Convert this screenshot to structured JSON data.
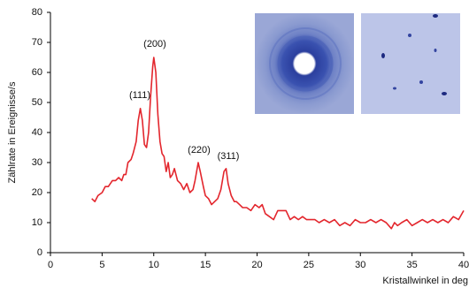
{
  "chart_data": {
    "type": "line",
    "y_label": "Zählrate in Ereignisse/s",
    "x_label": "Kristallwinkel in deg",
    "annotations": [
      "(111)",
      "(200)",
      "(220)",
      "(311)"
    ],
    "color": "#e3262d",
    "x": [
      4.0,
      4.3,
      4.6,
      5.0,
      5.3,
      5.6,
      6.0,
      6.3,
      6.6,
      6.9,
      7.1,
      7.3,
      7.5,
      7.8,
      8.0,
      8.3,
      8.5,
      8.7,
      8.9,
      9.1,
      9.3,
      9.5,
      9.7,
      9.9,
      10.0,
      10.2,
      10.4,
      10.6,
      10.8,
      11.0,
      11.2,
      11.4,
      11.6,
      11.8,
      12.0,
      12.3,
      12.6,
      12.9,
      13.2,
      13.5,
      13.8,
      14.0,
      14.3,
      14.5,
      14.8,
      15.0,
      15.3,
      15.6,
      15.9,
      16.2,
      16.5,
      16.8,
      17.0,
      17.2,
      17.5,
      17.8,
      18.0,
      18.3,
      18.6,
      19.0,
      19.4,
      19.8,
      20.2,
      20.5,
      20.8,
      21.2,
      21.6,
      22.0,
      22.4,
      22.8,
      23.2,
      23.6,
      24.0,
      24.4,
      24.8,
      25.2,
      25.6,
      26.0,
      26.5,
      27.0,
      27.5,
      28.0,
      28.5,
      29.0,
      29.5,
      30.0,
      30.5,
      31.0,
      31.5,
      32.0,
      32.5,
      33.0,
      33.3,
      33.6,
      34.0,
      34.5,
      35.0,
      35.5,
      36.0,
      36.5,
      37.0,
      37.5,
      38.0,
      38.5,
      39.0,
      39.5,
      40.0
    ],
    "values": [
      18,
      17,
      19,
      20,
      22,
      22,
      24,
      24,
      25,
      24,
      26,
      26,
      30,
      31,
      33,
      37,
      44,
      48,
      44,
      36,
      35,
      40,
      52,
      62,
      65,
      60,
      46,
      37,
      33,
      32,
      27,
      30,
      25,
      26,
      28,
      24,
      23,
      21,
      23,
      20,
      21,
      24,
      30,
      27,
      22,
      19,
      18,
      16,
      17,
      18,
      21,
      27,
      28,
      23,
      19,
      17,
      17,
      16,
      15,
      15,
      14,
      16,
      15,
      16,
      13,
      12,
      11,
      14,
      14,
      14,
      11,
      12,
      11,
      12,
      11,
      11,
      11,
      10,
      11,
      10,
      11,
      9,
      10,
      9,
      11,
      10,
      10,
      11,
      10,
      11,
      10,
      8,
      10,
      9,
      10,
      11,
      9,
      10,
      11,
      10,
      11,
      10,
      11,
      10,
      12,
      11,
      14
    ],
    "xlim": [
      0,
      40
    ],
    "xticks": [
      0,
      5,
      10,
      15,
      20,
      25,
      30,
      35,
      40
    ],
    "ylim": [
      0,
      80
    ],
    "yticks": [
      0,
      10,
      20,
      30,
      40,
      50,
      60,
      70,
      80
    ]
  }
}
